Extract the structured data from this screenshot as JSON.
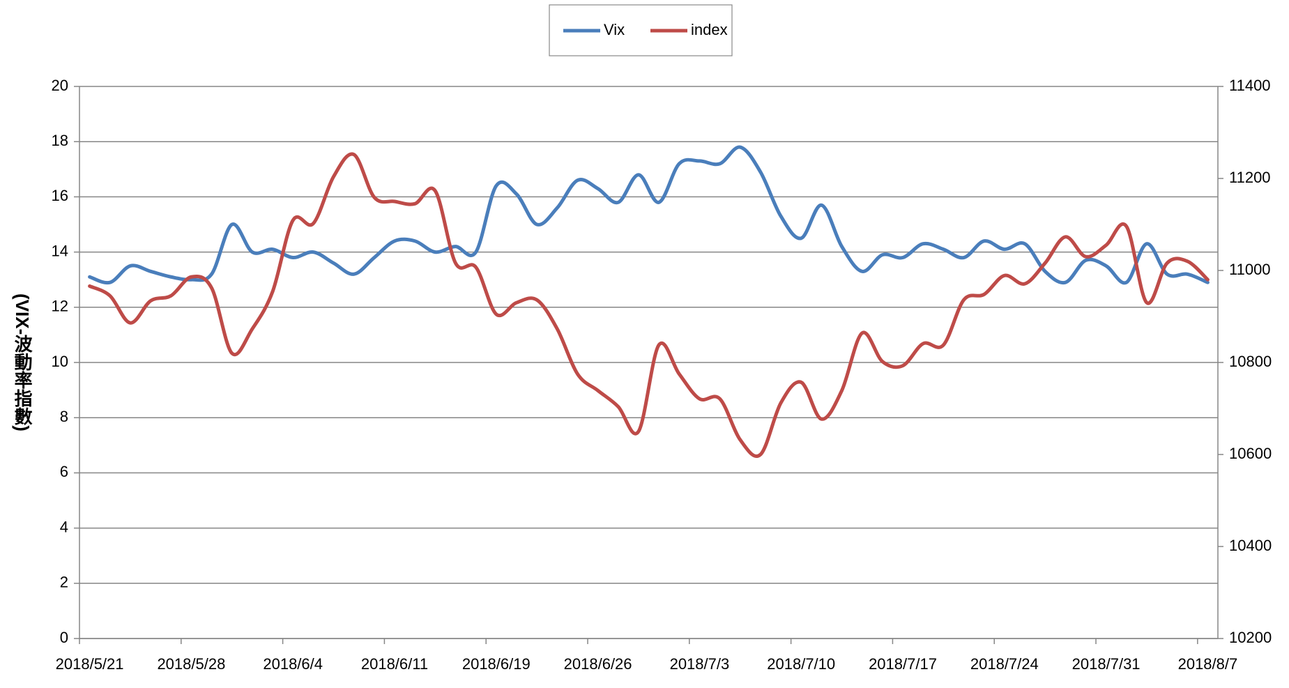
{
  "chart_data": {
    "type": "line",
    "y_label": "(VIX-波動率指數)",
    "categories": [
      "2018/5/21",
      null,
      null,
      null,
      null,
      "2018/5/28",
      null,
      null,
      null,
      null,
      "2018/6/4",
      null,
      null,
      null,
      null,
      "2018/6/11",
      null,
      null,
      null,
      null,
      "2018/6/19",
      null,
      null,
      null,
      null,
      "2018/6/26",
      null,
      null,
      null,
      null,
      "2018/7/3",
      null,
      null,
      null,
      null,
      "2018/7/10",
      null,
      null,
      null,
      null,
      "2018/7/17",
      null,
      null,
      null,
      null,
      "2018/7/24",
      null,
      null,
      null,
      null,
      "2018/7/31",
      null,
      null,
      null,
      null,
      "2018/8/7"
    ],
    "series": [
      {
        "name": "Vix",
        "color": "#4a7ebb",
        "axis": "y",
        "values": [
          13.1,
          12.9,
          13.5,
          13.3,
          13.1,
          13.0,
          13.2,
          15.0,
          14.0,
          14.1,
          13.8,
          14.0,
          13.6,
          13.2,
          13.8,
          14.4,
          14.4,
          14.0,
          14.2,
          14.0,
          16.4,
          16.1,
          15.0,
          15.6,
          16.6,
          16.3,
          15.8,
          16.8,
          15.8,
          17.2,
          17.3,
          17.2,
          17.8,
          16.9,
          15.3,
          14.5,
          15.7,
          14.2,
          13.3,
          13.9,
          13.8,
          14.3,
          14.1,
          13.8,
          14.4,
          14.1,
          14.3,
          13.3,
          12.9,
          13.7,
          13.5,
          12.9,
          14.3,
          13.2,
          13.2,
          12.9
        ]
      },
      {
        "name": "index",
        "color": "#be4b48",
        "axis": "y2",
        "values": [
          10966,
          10945,
          10886,
          10934,
          10945,
          10986,
          10962,
          10820,
          10873,
          10954,
          11109,
          11102,
          11204,
          11252,
          11159,
          11150,
          11145,
          11173,
          11016,
          11007,
          10905,
          10930,
          10936,
          10873,
          10775,
          10739,
          10704,
          10650,
          10838,
          10775,
          10721,
          10721,
          10632,
          10600,
          10712,
          10757,
          10677,
          10739,
          10864,
          10802,
          10793,
          10841,
          10838,
          10936,
          10948,
          10989,
          10971,
          11016,
          11073,
          11030,
          11055,
          11096,
          10930,
          11016,
          11020,
          10980
        ]
      }
    ],
    "ylim": [
      0,
      20
    ],
    "yticks": [
      0,
      2,
      4,
      6,
      8,
      10,
      12,
      14,
      16,
      18,
      20
    ],
    "y2lim": [
      10200,
      11400
    ],
    "y2ticks": [
      10200,
      10400,
      10600,
      10800,
      11000,
      11200,
      11400
    ],
    "grid": true,
    "legend": "top"
  }
}
